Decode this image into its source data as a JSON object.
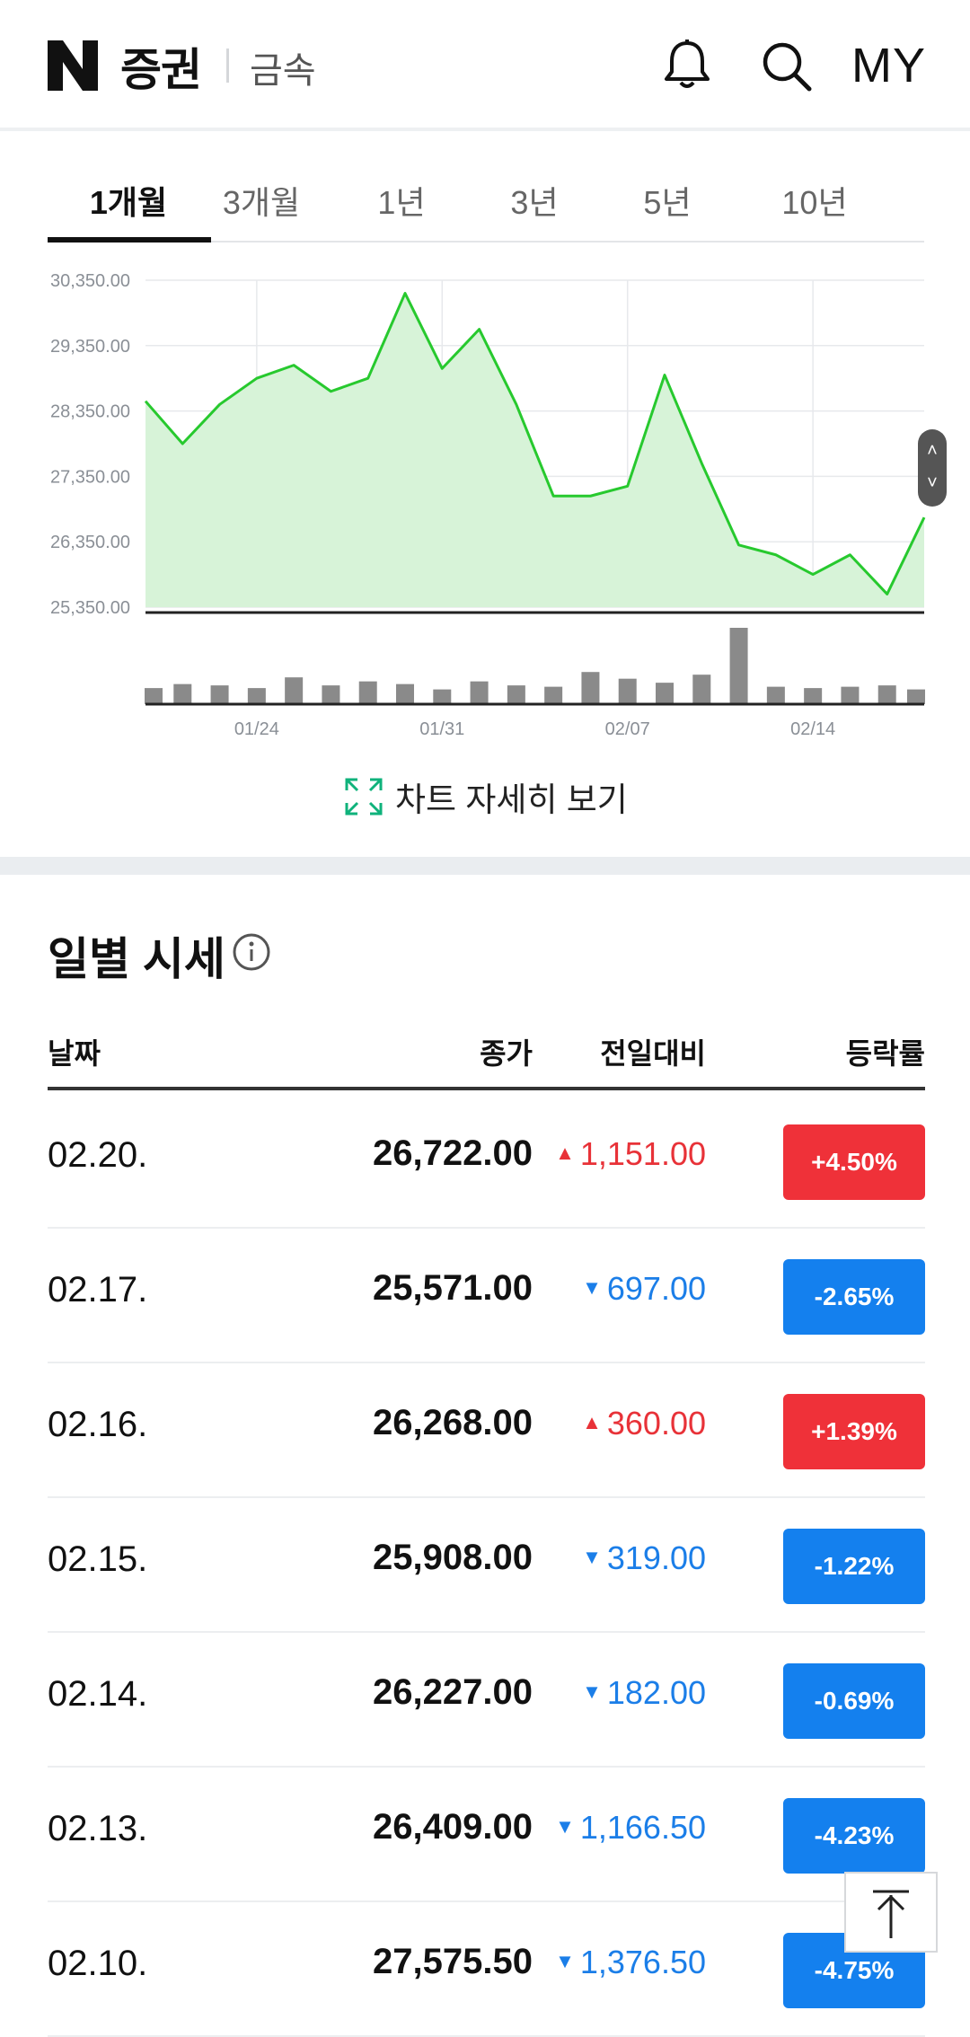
{
  "header": {
    "logo": "N",
    "brand": "증권",
    "category": "금속",
    "my_label": "MY",
    "icons": [
      "bell-icon",
      "search-icon"
    ]
  },
  "tabs": [
    {
      "label": "1개월",
      "active": true
    },
    {
      "label": "3개월",
      "active": false
    },
    {
      "label": "1년",
      "active": false
    },
    {
      "label": "3년",
      "active": false
    },
    {
      "label": "5년",
      "active": false
    },
    {
      "label": "10년",
      "active": false
    }
  ],
  "chart_data": {
    "type": "area",
    "y_ticks": [
      "30,350.00",
      "29,350.00",
      "28,350.00",
      "27,350.00",
      "26,350.00",
      "25,350.00"
    ],
    "ylim": [
      25350,
      30350
    ],
    "x_ticks": [
      "01/24",
      "01/31",
      "02/07",
      "02/14"
    ],
    "series": [
      {
        "values": [
          28500,
          27850,
          28450,
          28850,
          29050,
          28650,
          28850,
          30150,
          29000,
          29600,
          28450,
          27050,
          27050,
          27200,
          28900,
          27550,
          26300,
          26150,
          25850,
          26150,
          25550,
          26722
        ]
      }
    ],
    "volume": [
      12,
      15,
      14,
      12,
      20,
      14,
      17,
      15,
      11,
      17,
      14,
      13,
      24,
      19,
      16,
      22,
      57,
      13,
      12,
      13,
      14,
      11
    ],
    "colors": {
      "line": "#27c92e",
      "fill": "#d7f3d8",
      "volume": "#8a8a8a"
    }
  },
  "chart_detail_label": "차트 자세히 보기",
  "daily": {
    "title": "일별 시세",
    "headers": {
      "date": "날짜",
      "close": "종가",
      "diff": "전일대비",
      "rate": "등락률"
    },
    "rows": [
      {
        "date": "02.20.",
        "close": "26,722.00",
        "diff": "1,151.00",
        "dir": "up",
        "rate": "+4.50%"
      },
      {
        "date": "02.17.",
        "close": "25,571.00",
        "diff": "697.00",
        "dir": "down",
        "rate": "-2.65%"
      },
      {
        "date": "02.16.",
        "close": "26,268.00",
        "diff": "360.00",
        "dir": "up",
        "rate": "+1.39%"
      },
      {
        "date": "02.15.",
        "close": "25,908.00",
        "diff": "319.00",
        "dir": "down",
        "rate": "-1.22%"
      },
      {
        "date": "02.14.",
        "close": "26,227.00",
        "diff": "182.00",
        "dir": "down",
        "rate": "-0.69%"
      },
      {
        "date": "02.13.",
        "close": "26,409.00",
        "diff": "1,166.50",
        "dir": "down",
        "rate": "-4.23%"
      },
      {
        "date": "02.10.",
        "close": "27,575.50",
        "diff": "1,376.50",
        "dir": "down",
        "rate": "-4.75%"
      }
    ]
  },
  "colors": {
    "up": "#ef3139",
    "down": "#1480ee",
    "accent_green": "#27c92e"
  }
}
